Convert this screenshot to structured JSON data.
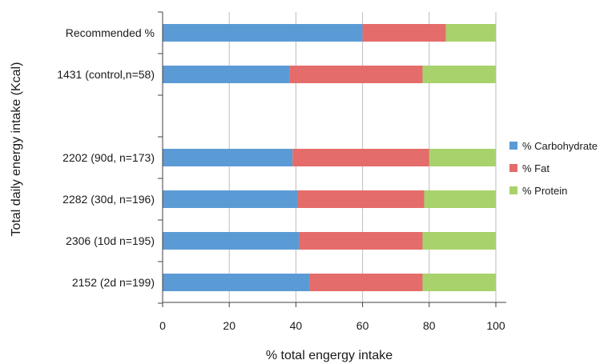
{
  "chart_data": {
    "type": "bar",
    "orientation": "horizontal",
    "stacked": true,
    "title": "",
    "xlabel": "% total engergy intake",
    "ylabel": "Total daily energy intake (Kcal)",
    "xlim": [
      0,
      100
    ],
    "xticks": [
      0,
      20,
      40,
      60,
      80,
      100
    ],
    "grid": true,
    "legend_position": "right",
    "categories": [
      "Recommended %",
      "1431 (control,n=58)",
      "",
      "2202 (90d, n=173)",
      "2282 (30d, n=196)",
      "2306 (10d n=195)",
      "2152 (2d n=199)"
    ],
    "series": [
      {
        "name": "% Carbohydrate",
        "color": "#5b9bd5",
        "values": [
          60,
          38,
          null,
          39,
          40.5,
          41,
          44
        ]
      },
      {
        "name": "% Fat",
        "color": "#e46c6a",
        "values": [
          25,
          40,
          null,
          41,
          38,
          37,
          34
        ]
      },
      {
        "name": "% Protein",
        "color": "#a8d26b",
        "values": [
          15,
          22,
          null,
          20,
          21.5,
          22,
          22
        ]
      }
    ]
  }
}
